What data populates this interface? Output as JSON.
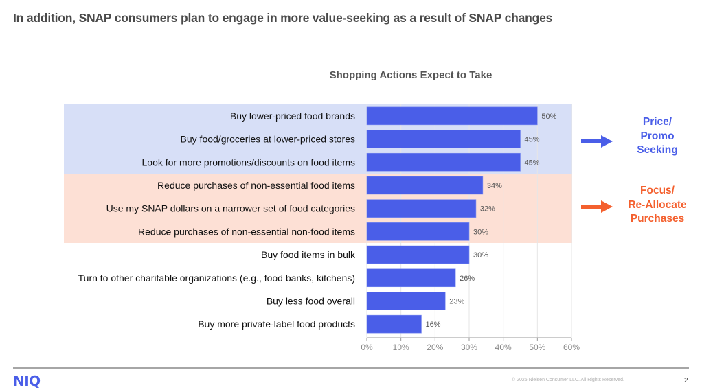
{
  "slide": {
    "title": "In addition, SNAP consumers plan to engage in more value-seeking as a result of SNAP changes"
  },
  "groups": [
    {
      "name": "Price/Promo Seeking",
      "label": "Price/\nPromo\nSeeking",
      "color": "#4a5ee8",
      "band_color": "#d7dff7",
      "rows": [
        0,
        1,
        2
      ]
    },
    {
      "name": "Focus/Re-Allocate Purchases",
      "label": "Focus/\nRe-Allocate\nPurchases",
      "color": "#f4602e",
      "band_color": "#fde0d5",
      "rows": [
        3,
        4,
        5
      ]
    }
  ],
  "chart_data": {
    "type": "bar",
    "orientation": "horizontal",
    "title": "Shopping Actions Expect to Take",
    "xlabel": "",
    "ylabel": "",
    "categories": [
      "Buy lower-priced food brands",
      "Buy food/groceries at lower-priced stores",
      "Look for more promotions/discounts on food items",
      "Reduce purchases of non-essential food items",
      "Use my SNAP dollars on a narrower set of food categories",
      "Reduce purchases of non-essential non-food items",
      "Buy food items in bulk",
      "Turn to other charitable organizations (e.g., food banks, kitchens)",
      "Buy less food overall",
      "Buy more private-label food products"
    ],
    "values": [
      50,
      45,
      45,
      34,
      32,
      30,
      30,
      26,
      23,
      16
    ],
    "value_labels": [
      "50%",
      "45%",
      "45%",
      "34%",
      "32%",
      "30%",
      "30%",
      "26%",
      "23%",
      "16%"
    ],
    "xlim": [
      0,
      60
    ],
    "x_ticks": [
      0,
      10,
      20,
      30,
      40,
      50,
      60
    ],
    "x_tick_labels": [
      "0%",
      "10%",
      "20%",
      "30%",
      "40%",
      "50%",
      "60%"
    ],
    "bar_color": "#4a5ee8",
    "grid": true,
    "legend": "none"
  },
  "footer": {
    "logo": "NIQ",
    "copyright": "© 2025 Nielsen Consumer LLC. All Rights Reserved.",
    "page_number": "2"
  }
}
